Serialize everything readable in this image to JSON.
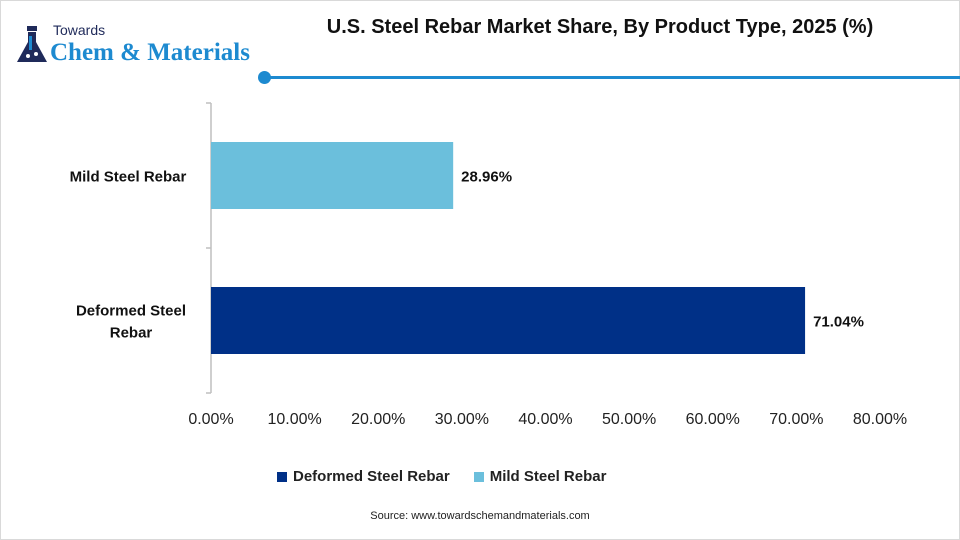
{
  "logo": {
    "line1": "Towards",
    "line2": "Chem & Materials"
  },
  "chart_data": {
    "type": "bar",
    "orientation": "horizontal",
    "title": "U.S. Steel Rebar Market Share, By Product Type, 2025 (%)",
    "categories": [
      "Mild Steel Rebar",
      "Deformed Steel Rebar"
    ],
    "values": [
      28.96,
      71.04
    ],
    "data_labels": [
      "28.96%",
      "71.04%"
    ],
    "colors": [
      "#6bbfdc",
      "#003087"
    ],
    "xlim": [
      0,
      80
    ],
    "x_ticks": [
      "0.00%",
      "10.00%",
      "20.00%",
      "30.00%",
      "40.00%",
      "50.00%",
      "60.00%",
      "70.00%",
      "80.00%"
    ],
    "grid": false,
    "legend": {
      "placement": "bottom",
      "entries": [
        {
          "name": "Deformed Steel Rebar",
          "color": "#003087"
        },
        {
          "name": "Mild Steel Rebar",
          "color": "#6bbfdc"
        }
      ]
    }
  },
  "source": "Source: www.towardschemandmaterials.com"
}
